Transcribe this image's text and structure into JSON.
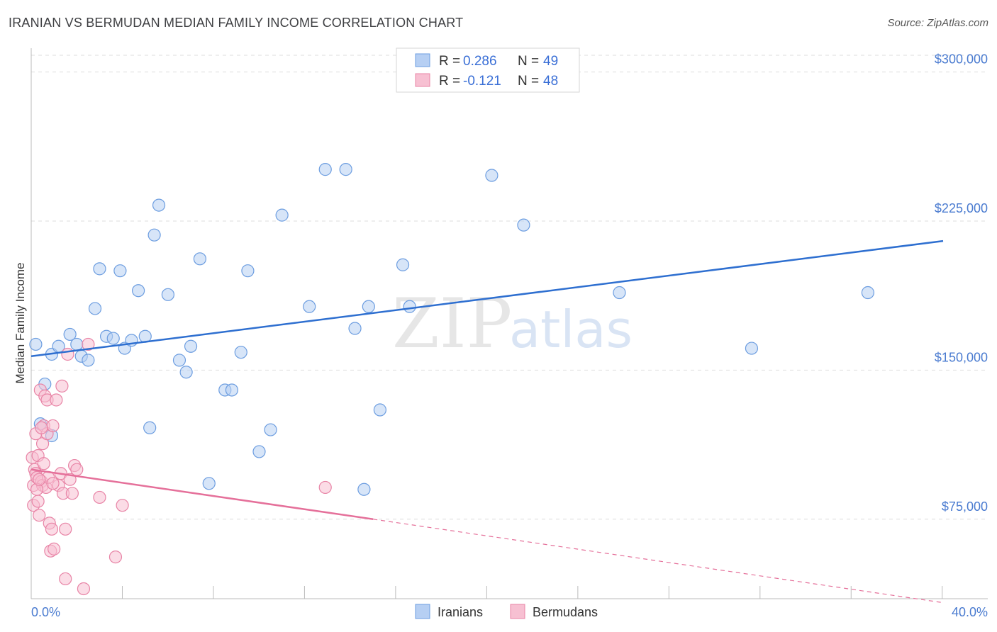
{
  "header": {
    "title": "IRANIAN VS BERMUDAN MEDIAN FAMILY INCOME CORRELATION CHART",
    "source": "Source: ZipAtlas.com"
  },
  "watermark": {
    "zip": "ZIP",
    "atlas": "atlas"
  },
  "colors": {
    "iranians_fill": "#b6cff3",
    "iranians_stroke": "#6c9de0",
    "iranians_line": "#2e6fd0",
    "bermudans_fill": "#f7c0d2",
    "bermudans_stroke": "#e884a6",
    "bermudans_line": "#e5709a",
    "grid": "#dddddd",
    "tick_label": "#4a7bd0"
  },
  "legend": {
    "rows": [
      {
        "r_label": "R = ",
        "r_value": "0.286",
        "n_label": "N = ",
        "n_value": "49"
      },
      {
        "r_label": "R = ",
        "r_value": "-0.121",
        "n_label": "N = ",
        "n_value": "48"
      }
    ]
  },
  "chart_data": {
    "type": "scatter",
    "xlabel": "",
    "ylabel": "Median Family Income",
    "xlim": [
      0,
      40
    ],
    "ylim": [
      35000,
      312000
    ],
    "x_tick_labels": [
      "0.0%",
      "40.0%"
    ],
    "y_ticks": [
      {
        "value": 75000,
        "label": "$75,000"
      },
      {
        "value": 150000,
        "label": "$150,000"
      },
      {
        "value": 225000,
        "label": "$225,000"
      },
      {
        "value": 300000,
        "label": "$300,000"
      }
    ],
    "grid": "horizontal-dashed",
    "legend_position": "top-center",
    "series": [
      {
        "name": "Iranians",
        "points": [
          [
            0.4,
            123000
          ],
          [
            0.6,
            143000
          ],
          [
            0.9,
            117000
          ],
          [
            0.9,
            158000
          ],
          [
            1.2,
            162000
          ],
          [
            1.7,
            168000
          ],
          [
            2.0,
            163000
          ],
          [
            2.2,
            157000
          ],
          [
            2.5,
            155000
          ],
          [
            2.8,
            181000
          ],
          [
            3.0,
            201000
          ],
          [
            3.3,
            167000
          ],
          [
            3.6,
            166000
          ],
          [
            3.9,
            200000
          ],
          [
            4.1,
            161000
          ],
          [
            4.4,
            165000
          ],
          [
            4.7,
            190000
          ],
          [
            5.0,
            167000
          ],
          [
            5.2,
            121000
          ],
          [
            5.4,
            218000
          ],
          [
            5.6,
            233000
          ],
          [
            6.0,
            188000
          ],
          [
            6.5,
            155000
          ],
          [
            6.8,
            149000
          ],
          [
            7.0,
            162000
          ],
          [
            7.4,
            206000
          ],
          [
            7.8,
            93000
          ],
          [
            8.5,
            140000
          ],
          [
            8.8,
            140000
          ],
          [
            9.2,
            159000
          ],
          [
            9.5,
            200000
          ],
          [
            10.0,
            109000
          ],
          [
            10.5,
            120000
          ],
          [
            11.0,
            228000
          ],
          [
            12.2,
            182000
          ],
          [
            12.9,
            251000
          ],
          [
            13.8,
            251000
          ],
          [
            14.2,
            171000
          ],
          [
            14.6,
            90000
          ],
          [
            14.8,
            182000
          ],
          [
            15.3,
            130000
          ],
          [
            16.3,
            203000
          ],
          [
            16.6,
            182000
          ],
          [
            20.2,
            248000
          ],
          [
            21.6,
            223000
          ],
          [
            25.8,
            189000
          ],
          [
            31.6,
            161000
          ],
          [
            36.7,
            189000
          ],
          [
            0.2,
            163000
          ]
        ]
      },
      {
        "name": "Bermudans",
        "points": [
          [
            0.05,
            106000
          ],
          [
            0.1,
            82000
          ],
          [
            0.1,
            92000
          ],
          [
            0.15,
            100000
          ],
          [
            0.2,
            98000
          ],
          [
            0.2,
            118000
          ],
          [
            0.25,
            96000
          ],
          [
            0.3,
            84000
          ],
          [
            0.3,
            107000
          ],
          [
            0.35,
            77000
          ],
          [
            0.4,
            140000
          ],
          [
            0.45,
            94000
          ],
          [
            0.5,
            113000
          ],
          [
            0.5,
            92000
          ],
          [
            0.55,
            122000
          ],
          [
            0.6,
            137000
          ],
          [
            0.65,
            91000
          ],
          [
            0.7,
            135000
          ],
          [
            0.7,
            118000
          ],
          [
            0.75,
            96000
          ],
          [
            0.8,
            73000
          ],
          [
            0.85,
            59000
          ],
          [
            0.9,
            70000
          ],
          [
            0.95,
            122000
          ],
          [
            1.0,
            60000
          ],
          [
            1.1,
            135000
          ],
          [
            1.2,
            92000
          ],
          [
            1.3,
            98000
          ],
          [
            1.35,
            142000
          ],
          [
            1.4,
            88000
          ],
          [
            1.5,
            70000
          ],
          [
            1.5,
            45000
          ],
          [
            1.6,
            158000
          ],
          [
            1.7,
            95000
          ],
          [
            1.8,
            88000
          ],
          [
            1.9,
            102000
          ],
          [
            2.0,
            100000
          ],
          [
            2.3,
            40000
          ],
          [
            2.5,
            163000
          ],
          [
            3.0,
            86000
          ],
          [
            3.7,
            56000
          ],
          [
            4.0,
            82000
          ],
          [
            12.9,
            91000
          ],
          [
            0.25,
            90000
          ],
          [
            0.55,
            103000
          ],
          [
            0.35,
            95000
          ],
          [
            0.95,
            93000
          ],
          [
            0.45,
            121000
          ]
        ]
      }
    ],
    "trend_lines": [
      {
        "series": "Iranians",
        "x": [
          0,
          40
        ],
        "y": [
          157000,
          215000
        ]
      },
      {
        "series": "Bermudans",
        "x": [
          0,
          15
        ],
        "y": [
          100000,
          75000
        ],
        "dashed_to": [
          40,
          33000
        ]
      }
    ]
  },
  "bottom_legend": {
    "items": [
      "Iranians",
      "Bermudans"
    ]
  }
}
